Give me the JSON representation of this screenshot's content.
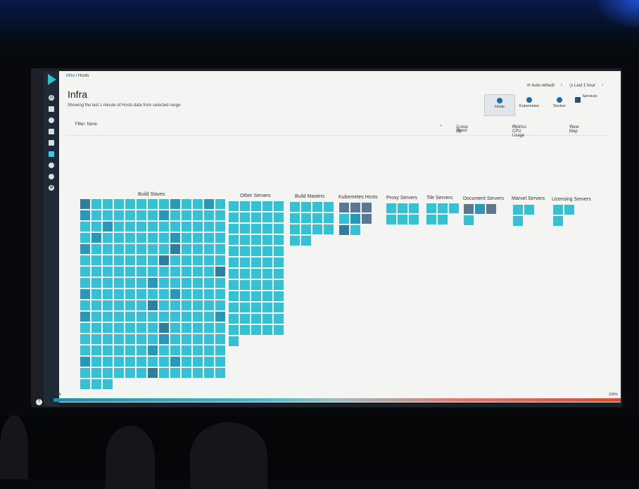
{
  "breadcrumb": {
    "parent": "Infra",
    "separator": "/",
    "current": "Hosts"
  },
  "header": {
    "auto_refresh": "Auto-refresh",
    "prev": "‹",
    "time_range": "Last 1 hour",
    "next": "›",
    "title": "Infra",
    "subtitle": "Showing the last 1 minute of Hosts data from selected range"
  },
  "views": [
    {
      "label": "Hosts",
      "icon": "hosts-icon",
      "selected": true
    },
    {
      "label": "Kubernetes",
      "icon": "kubernetes-icon",
      "selected": false
    },
    {
      "label": "Docker",
      "icon": "docker-icon",
      "selected": false
    },
    {
      "label": "Services",
      "icon": "services-icon",
      "selected": false
    }
  ],
  "filter": {
    "label": "Filter: None"
  },
  "toolbar": {
    "group_by_label": "Group By:",
    "group_by_chip": "Roles",
    "chip_remove": "×",
    "metrics": "Metrics: CPU Usage",
    "view": "View: Map"
  },
  "groups": [
    {
      "name": "Build Slaves",
      "count": 211,
      "cols": 13
    },
    {
      "name": "Other Servers",
      "count": 61,
      "cols": 5
    },
    {
      "name": "Build Masters",
      "count": 14,
      "cols": 4
    },
    {
      "name": "Kubernetes Hosts",
      "count": 8,
      "cols": 3
    },
    {
      "name": "Proxy Servers",
      "count": 6,
      "cols": 3
    },
    {
      "name": "Tile Servers",
      "count": 5,
      "cols": 3
    },
    {
      "name": "Document Servers",
      "count": 4,
      "cols": 3
    },
    {
      "name": "Marvel Servers",
      "count": 3,
      "cols": 2
    },
    {
      "name": "Licensing Servers",
      "count": 3,
      "cols": 2
    }
  ],
  "legend": {
    "min": "0%",
    "max": "100%"
  },
  "colors": {
    "accent": "#34c1d3",
    "cell_high": "#2a96b8",
    "cell_higher": "#2d7f9b",
    "cell_grey": "#5c7890",
    "legend_low": "#1a8fa8",
    "legend_high": "#d94a33"
  }
}
